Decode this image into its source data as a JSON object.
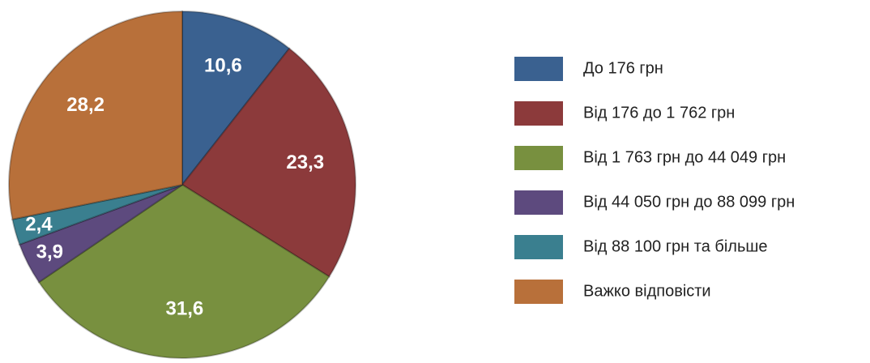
{
  "chart_data": {
    "type": "pie",
    "categories": [
      "До 176 грн",
      "Від 176 до 1 762 грн",
      "Від 1 763 грн до 44 049 грн",
      "Від 44 050 грн до 88 099 грн",
      "Від 88 100 грн та більше",
      "Важко відповісти"
    ],
    "values": [
      10.6,
      23.3,
      31.6,
      3.9,
      2.4,
      28.2
    ],
    "value_labels": [
      "10,6",
      "23,3",
      "31,6",
      "3,9",
      "2,4",
      "28,2"
    ],
    "colors": [
      "#3a6190",
      "#8c3a3b",
      "#78903f",
      "#5d4a7e",
      "#3a7f8f",
      "#b8703a"
    ],
    "legend": "right"
  }
}
